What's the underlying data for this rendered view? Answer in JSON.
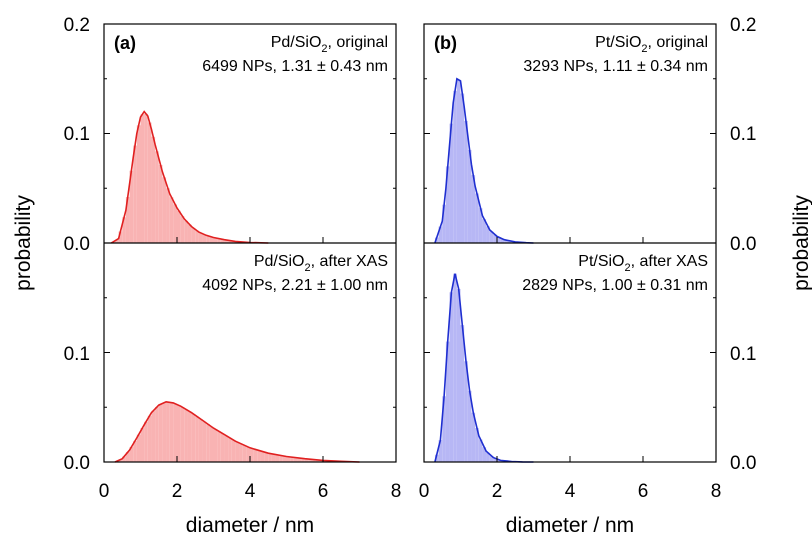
{
  "chart_data": {
    "type": "area",
    "ylabel_left": "probability",
    "ylabel_right": "probability",
    "xlabel_left": "diameter / nm",
    "xlabel_right": "diameter / nm",
    "xlim": [
      0,
      8
    ],
    "ylim": [
      0,
      0.2
    ],
    "xticks": [
      0,
      2,
      4,
      6,
      8
    ],
    "xtick_labels": [
      "0",
      "2",
      "4",
      "6",
      "8"
    ],
    "ytick_labels_top": [
      "0.0",
      "0.1",
      "0.2"
    ],
    "ytick_labels_bottom": [
      "0.0",
      "0.1"
    ],
    "grid": false,
    "panels": [
      {
        "id": "a",
        "label": "(a)",
        "color": "#e02020",
        "fill": "#f9b3b3",
        "subplots": [
          {
            "row": "top",
            "annotation_line1": "Pd/SiO",
            "annotation_sub": "2",
            "annotation_suffix": ", original",
            "annotation_line2": "6499 NPs, 1.31 ± 0.43 nm",
            "curve": {
              "x": [
                0.2,
                0.4,
                0.6,
                0.8,
                0.9,
                1.0,
                1.1,
                1.2,
                1.3,
                1.4,
                1.6,
                1.8,
                2.0,
                2.2,
                2.4,
                2.6,
                2.8,
                3.0,
                3.3,
                3.6,
                4.0,
                4.5
              ],
              "y": [
                0.0,
                0.004,
                0.03,
                0.078,
                0.1,
                0.115,
                0.12,
                0.116,
                0.104,
                0.09,
                0.065,
                0.045,
                0.032,
                0.022,
                0.015,
                0.01,
                0.007,
                0.005,
                0.003,
                0.0015,
                0.0005,
                0.0
              ]
            }
          },
          {
            "row": "bottom",
            "annotation_line1": "Pd/SiO",
            "annotation_sub": "2",
            "annotation_suffix": ", after XAS",
            "annotation_line2": "4092 NPs, 2.21 ± 1.00 nm",
            "curve": {
              "x": [
                0.3,
                0.5,
                0.7,
                0.9,
                1.1,
                1.3,
                1.5,
                1.7,
                1.9,
                2.1,
                2.4,
                2.7,
                3.0,
                3.3,
                3.6,
                4.0,
                4.5,
                5.0,
                5.5,
                6.0,
                6.5,
                7.0
              ],
              "y": [
                0.0,
                0.003,
                0.011,
                0.022,
                0.034,
                0.045,
                0.052,
                0.055,
                0.054,
                0.051,
                0.045,
                0.038,
                0.031,
                0.025,
                0.019,
                0.013,
                0.008,
                0.005,
                0.003,
                0.0015,
                0.0006,
                0.0
              ]
            }
          }
        ]
      },
      {
        "id": "b",
        "label": "(b)",
        "color": "#1f2fd0",
        "fill": "#b7b7f5",
        "subplots": [
          {
            "row": "top",
            "annotation_line1": "Pt/SiO",
            "annotation_sub": "2",
            "annotation_suffix": ", original",
            "annotation_line2": "3293 NPs, 1.11 ± 0.34 nm",
            "curve": {
              "x": [
                0.3,
                0.5,
                0.6,
                0.7,
                0.8,
                0.9,
                1.0,
                1.1,
                1.2,
                1.3,
                1.4,
                1.6,
                1.8,
                2.0,
                2.2,
                2.5,
                2.8,
                3.0
              ],
              "y": [
                0.0,
                0.02,
                0.05,
                0.09,
                0.128,
                0.15,
                0.148,
                0.125,
                0.098,
                0.072,
                0.052,
                0.025,
                0.012,
                0.006,
                0.003,
                0.001,
                0.0003,
                0.0
              ]
            }
          },
          {
            "row": "bottom",
            "annotation_line1": "Pt/SiO",
            "annotation_sub": "2",
            "annotation_suffix": ", after XAS",
            "annotation_line2": "2829 NPs, 1.00 ± 0.31 nm",
            "curve": {
              "x": [
                0.3,
                0.45,
                0.55,
                0.65,
                0.75,
                0.85,
                0.95,
                1.05,
                1.15,
                1.25,
                1.35,
                1.5,
                1.7,
                1.9,
                2.1,
                2.4,
                2.7,
                3.0
              ],
              "y": [
                0.0,
                0.02,
                0.06,
                0.11,
                0.155,
                0.172,
                0.158,
                0.125,
                0.092,
                0.065,
                0.045,
                0.024,
                0.01,
                0.004,
                0.0015,
                0.0005,
                0.0001,
                0.0
              ]
            }
          }
        ]
      }
    ]
  }
}
